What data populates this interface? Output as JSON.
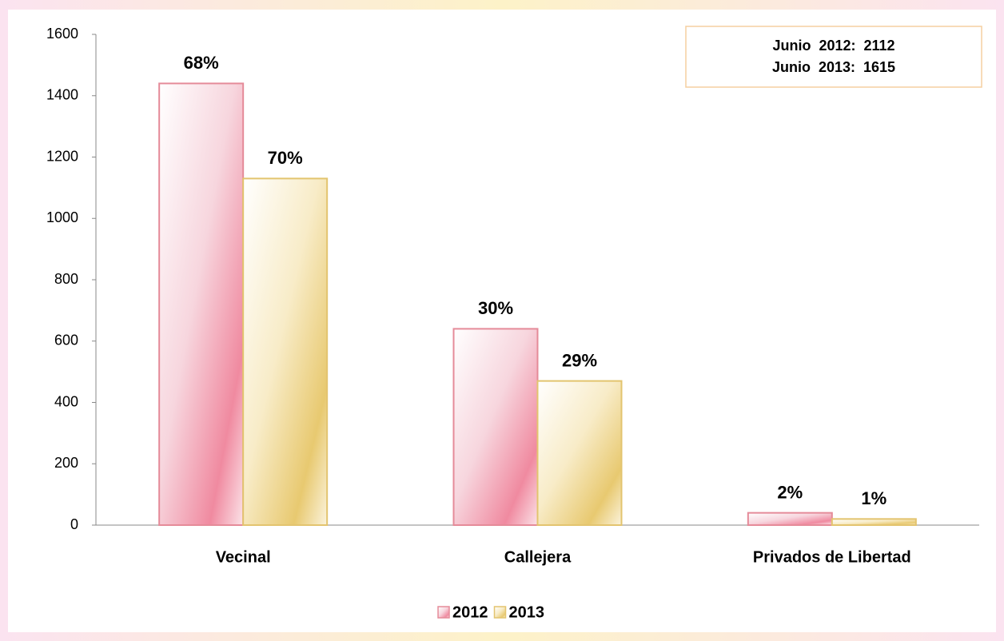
{
  "chart_data": {
    "type": "bar",
    "categories": [
      "Vecinal",
      "Callejera",
      "Privados de Libertad"
    ],
    "series": [
      {
        "name": "2012",
        "color": "#e58b99",
        "values": [
          1440,
          640,
          40
        ],
        "labels": [
          "68%",
          "30%",
          "2%"
        ]
      },
      {
        "name": "2013",
        "color": "#e3c46f",
        "values": [
          1130,
          470,
          20
        ],
        "labels": [
          "70%",
          "29%",
          "1%"
        ]
      }
    ],
    "ylim": [
      0,
      1600
    ],
    "yticks": [
      0,
      200,
      400,
      600,
      800,
      1000,
      1200,
      1400,
      1600
    ],
    "annotations": [
      "Junio  2012:  2112",
      "Junio  2013:  1615"
    ],
    "legend": "bottom"
  }
}
